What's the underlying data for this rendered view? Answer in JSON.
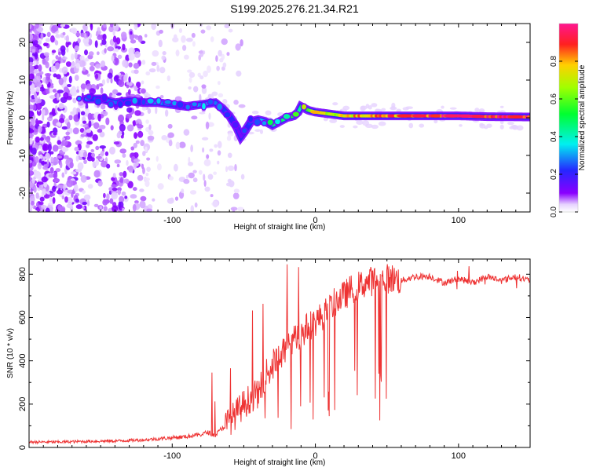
{
  "title": "S199.2025.276.21.34.R21",
  "chart_data": [
    {
      "type": "heatmap",
      "title": "S199.2025.276.21.34.R21",
      "xlabel": "Height of straight line (km)",
      "ylabel": "Frequency (Hz)",
      "xlim": [
        -200,
        150
      ],
      "ylim": [
        -25,
        25
      ],
      "xticks": [
        -100,
        0,
        100
      ],
      "yticks": [
        20,
        10,
        0,
        -10,
        -20
      ],
      "xtick_labels": [
        "-100",
        "0",
        "100"
      ],
      "ytick_labels": [
        "20",
        "10",
        "0",
        "-10",
        "-20"
      ],
      "colorbar": {
        "label": "Normalized spectral amplitude",
        "range": [
          0,
          1
        ],
        "ticks": [
          0,
          0.2,
          0.4,
          0.6,
          0.8
        ],
        "tick_labels": [
          "0.0",
          "0.2",
          "0.4",
          "0.6",
          "0.8"
        ]
      },
      "ridge": {
        "x": [
          -160,
          -150,
          -140,
          -130,
          -120,
          -110,
          -100,
          -90,
          -80,
          -70,
          -65,
          -60,
          -55,
          -52,
          -50,
          -45,
          -40,
          -35,
          -30,
          -25,
          -20,
          -15,
          -12,
          -10,
          -5,
          0,
          10,
          20,
          40,
          60,
          80,
          100,
          120,
          150
        ],
        "frequency": [
          5,
          5,
          4,
          4.5,
          4,
          4,
          3.5,
          3,
          3.5,
          4,
          2.5,
          0.5,
          -2.5,
          -5,
          -4,
          -1,
          -0.5,
          -1,
          -2,
          -1,
          0,
          0.5,
          1.5,
          3,
          2,
          1.5,
          1,
          0.5,
          0.5,
          0.5,
          0.5,
          0.5,
          0.3,
          0.2
        ],
        "amplitude": [
          0.25,
          0.2,
          0.28,
          0.25,
          0.25,
          0.3,
          0.25,
          0.25,
          0.3,
          0.3,
          0.25,
          0.2,
          0.15,
          0.12,
          0.2,
          0.25,
          0.3,
          0.35,
          0.4,
          0.42,
          0.45,
          0.5,
          0.45,
          0.5,
          0.6,
          0.65,
          0.7,
          0.75,
          0.8,
          0.85,
          0.9,
          0.93,
          0.95,
          0.95
        ]
      }
    },
    {
      "type": "line",
      "xlabel": "Height of straight line (km)",
      "ylabel": "SNR (10 * v/v)",
      "xlim": [
        -200,
        150
      ],
      "ylim": [
        0,
        870
      ],
      "xticks": [
        -100,
        0,
        100
      ],
      "yticks": [
        0,
        200,
        400,
        600,
        800
      ],
      "xtick_labels": [
        "-100",
        "0",
        "100"
      ],
      "ytick_labels": [
        "0",
        "200",
        "400",
        "600",
        "800"
      ],
      "series": [
        {
          "name": "SNR",
          "color": "#ee3333",
          "x": [
            -200,
            -180,
            -160,
            -140,
            -120,
            -110,
            -100,
            -90,
            -80,
            -75,
            -70,
            -65,
            -60,
            -55,
            -50,
            -45,
            -40,
            -35,
            -30,
            -25,
            -20,
            -15,
            -10,
            -5,
            0,
            5,
            10,
            15,
            20,
            25,
            30,
            35,
            40,
            45,
            50,
            55,
            60,
            70,
            80,
            90,
            100,
            110,
            120,
            130,
            140,
            150
          ],
          "values": [
            25,
            25,
            28,
            30,
            35,
            40,
            45,
            50,
            60,
            70,
            55,
            90,
            120,
            160,
            200,
            230,
            250,
            330,
            380,
            420,
            460,
            500,
            520,
            560,
            580,
            610,
            640,
            680,
            700,
            730,
            745,
            760,
            770,
            770,
            780,
            780,
            770,
            790,
            790,
            760,
            780,
            760,
            790,
            770,
            790,
            770
          ]
        }
      ]
    }
  ]
}
